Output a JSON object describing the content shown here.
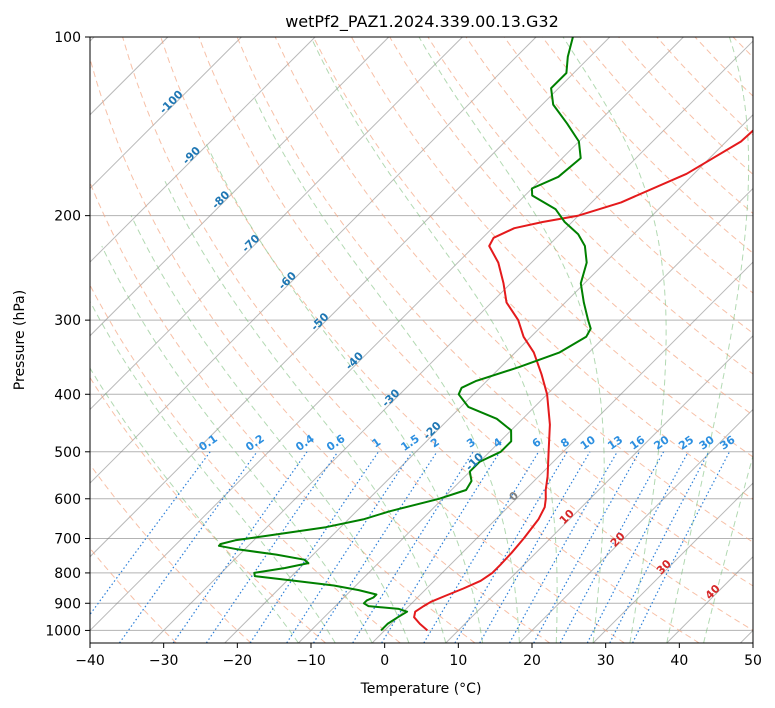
{
  "chart_data": {
    "type": "line",
    "title": "wetPf2_PAZ1.2024.339.00.13.G32",
    "xlabel": "Temperature (°C)",
    "ylabel": "Pressure (hPa)",
    "xlim": [
      -40,
      50
    ],
    "ylim": [
      1050,
      100
    ],
    "y_scale": "log",
    "grid": true,
    "x_ticks": [
      "−40",
      "−30",
      "−20",
      "−10",
      "0",
      "10",
      "20",
      "30",
      "40",
      "50"
    ],
    "x_tick_values": [
      -40,
      -30,
      -20,
      -10,
      0,
      10,
      20,
      30,
      40,
      50
    ],
    "y_ticks": [
      "100",
      "200",
      "300",
      "400",
      "500",
      "600",
      "700",
      "800",
      "900",
      "1000"
    ],
    "y_tick_values": [
      100,
      200,
      300,
      400,
      500,
      600,
      700,
      800,
      900,
      1000
    ],
    "skew": 35,
    "series": [
      {
        "color": "#e41a1c",
        "role": "temperature",
        "points": [
          [
            1000,
            5.8
          ],
          [
            975,
            3.9
          ],
          [
            950,
            2.2
          ],
          [
            930,
            1.6
          ],
          [
            910,
            2.0
          ],
          [
            895,
            2.4
          ],
          [
            875,
            3.5
          ],
          [
            850,
            5.0
          ],
          [
            825,
            6.3
          ],
          [
            800,
            6.8
          ],
          [
            775,
            6.8
          ],
          [
            740,
            6.7
          ],
          [
            700,
            6.4
          ],
          [
            650,
            5.8
          ],
          [
            620,
            5.0
          ],
          [
            600,
            4.0
          ],
          [
            580,
            2.8
          ],
          [
            550,
            1.2
          ],
          [
            500,
            -2.0
          ],
          [
            450,
            -5.5
          ],
          [
            400,
            -10.0
          ],
          [
            370,
            -13.5
          ],
          [
            340,
            -17.5
          ],
          [
            320,
            -21.0
          ],
          [
            300,
            -24.0
          ],
          [
            280,
            -28.0
          ],
          [
            260,
            -31.0
          ],
          [
            240,
            -34.5
          ],
          [
            225,
            -38.0
          ],
          [
            218,
            -38.5
          ],
          [
            210,
            -37.0
          ],
          [
            205,
            -34.0
          ],
          [
            200,
            -30.0
          ],
          [
            190,
            -26.0
          ],
          [
            170,
            -21.0
          ],
          [
            150,
            -18.0
          ],
          [
            130,
            -17.5
          ],
          [
            115,
            -16.5
          ],
          [
            100,
            -16.5
          ]
        ]
      },
      {
        "color": "#008000",
        "role": "dewpoint",
        "points": [
          [
            1000,
            -0.5
          ],
          [
            975,
            -0.5
          ],
          [
            950,
            0.0
          ],
          [
            930,
            0.5
          ],
          [
            920,
            -1.0
          ],
          [
            910,
            -5.5
          ],
          [
            900,
            -6.5
          ],
          [
            890,
            -6.5
          ],
          [
            880,
            -6.0
          ],
          [
            870,
            -6.0
          ],
          [
            855,
            -9.0
          ],
          [
            840,
            -13.0
          ],
          [
            825,
            -19.0
          ],
          [
            810,
            -25.0
          ],
          [
            800,
            -25.5
          ],
          [
            785,
            -22.0
          ],
          [
            770,
            -19.5
          ],
          [
            760,
            -20.5
          ],
          [
            745,
            -25.0
          ],
          [
            730,
            -31.0
          ],
          [
            720,
            -34.0
          ],
          [
            715,
            -34.0
          ],
          [
            705,
            -32.5
          ],
          [
            690,
            -28.0
          ],
          [
            670,
            -22.0
          ],
          [
            650,
            -18.0
          ],
          [
            630,
            -15.5
          ],
          [
            600,
            -10.5
          ],
          [
            580,
            -8.0
          ],
          [
            560,
            -8.5
          ],
          [
            540,
            -10.0
          ],
          [
            520,
            -10.0
          ],
          [
            500,
            -8.5
          ],
          [
            480,
            -8.5
          ],
          [
            460,
            -10.0
          ],
          [
            440,
            -13.5
          ],
          [
            420,
            -19.0
          ],
          [
            400,
            -22.0
          ],
          [
            390,
            -22.5
          ],
          [
            380,
            -21.5
          ],
          [
            360,
            -17.5
          ],
          [
            340,
            -14.0
          ],
          [
            320,
            -12.5
          ],
          [
            310,
            -13.0
          ],
          [
            300,
            -14.5
          ],
          [
            280,
            -17.5
          ],
          [
            260,
            -20.5
          ],
          [
            240,
            -22.5
          ],
          [
            225,
            -25.0
          ],
          [
            215,
            -27.5
          ],
          [
            205,
            -31.0
          ],
          [
            195,
            -34.0
          ],
          [
            185,
            -39.0
          ],
          [
            180,
            -40.0
          ],
          [
            172,
            -38.0
          ],
          [
            160,
            -37.5
          ],
          [
            150,
            -40.0
          ],
          [
            140,
            -44.0
          ],
          [
            130,
            -48.5
          ],
          [
            122,
            -51.0
          ],
          [
            115,
            -51.0
          ],
          [
            108,
            -53.0
          ],
          [
            100,
            -55.0
          ]
        ]
      }
    ],
    "isotherm_labels": [
      {
        "text": "-100",
        "value": -100,
        "color": "#1f77b4"
      },
      {
        "text": "-90",
        "value": -90,
        "color": "#1f77b4"
      },
      {
        "text": "-80",
        "value": -80,
        "color": "#1f77b4"
      },
      {
        "text": "-70",
        "value": -70,
        "color": "#1f77b4"
      },
      {
        "text": "-60",
        "value": -60,
        "color": "#1f77b4"
      },
      {
        "text": "-50",
        "value": -50,
        "color": "#1f77b4"
      },
      {
        "text": "-40",
        "value": -40,
        "color": "#1f77b4"
      },
      {
        "text": "-30",
        "value": -30,
        "color": "#1f77b4"
      },
      {
        "text": "-20",
        "value": -20,
        "color": "#1f77b4"
      },
      {
        "text": "-10",
        "value": -10,
        "color": "#1f77b4"
      },
      {
        "text": "0",
        "value": 0,
        "color": "#808080"
      },
      {
        "text": "10",
        "value": 10,
        "color": "#d62728"
      },
      {
        "text": "20",
        "value": 20,
        "color": "#d62728"
      },
      {
        "text": "30",
        "value": 30,
        "color": "#d62728"
      },
      {
        "text": "40",
        "value": 40,
        "color": "#d62728"
      }
    ],
    "mixing_ratio_labels": [
      "0.1",
      "0.2",
      "0.4",
      "0.6",
      "1",
      "1.5",
      "2",
      "3",
      "4",
      "6",
      "8",
      "10",
      "13",
      "16",
      "20",
      "25",
      "30",
      "36"
    ]
  }
}
